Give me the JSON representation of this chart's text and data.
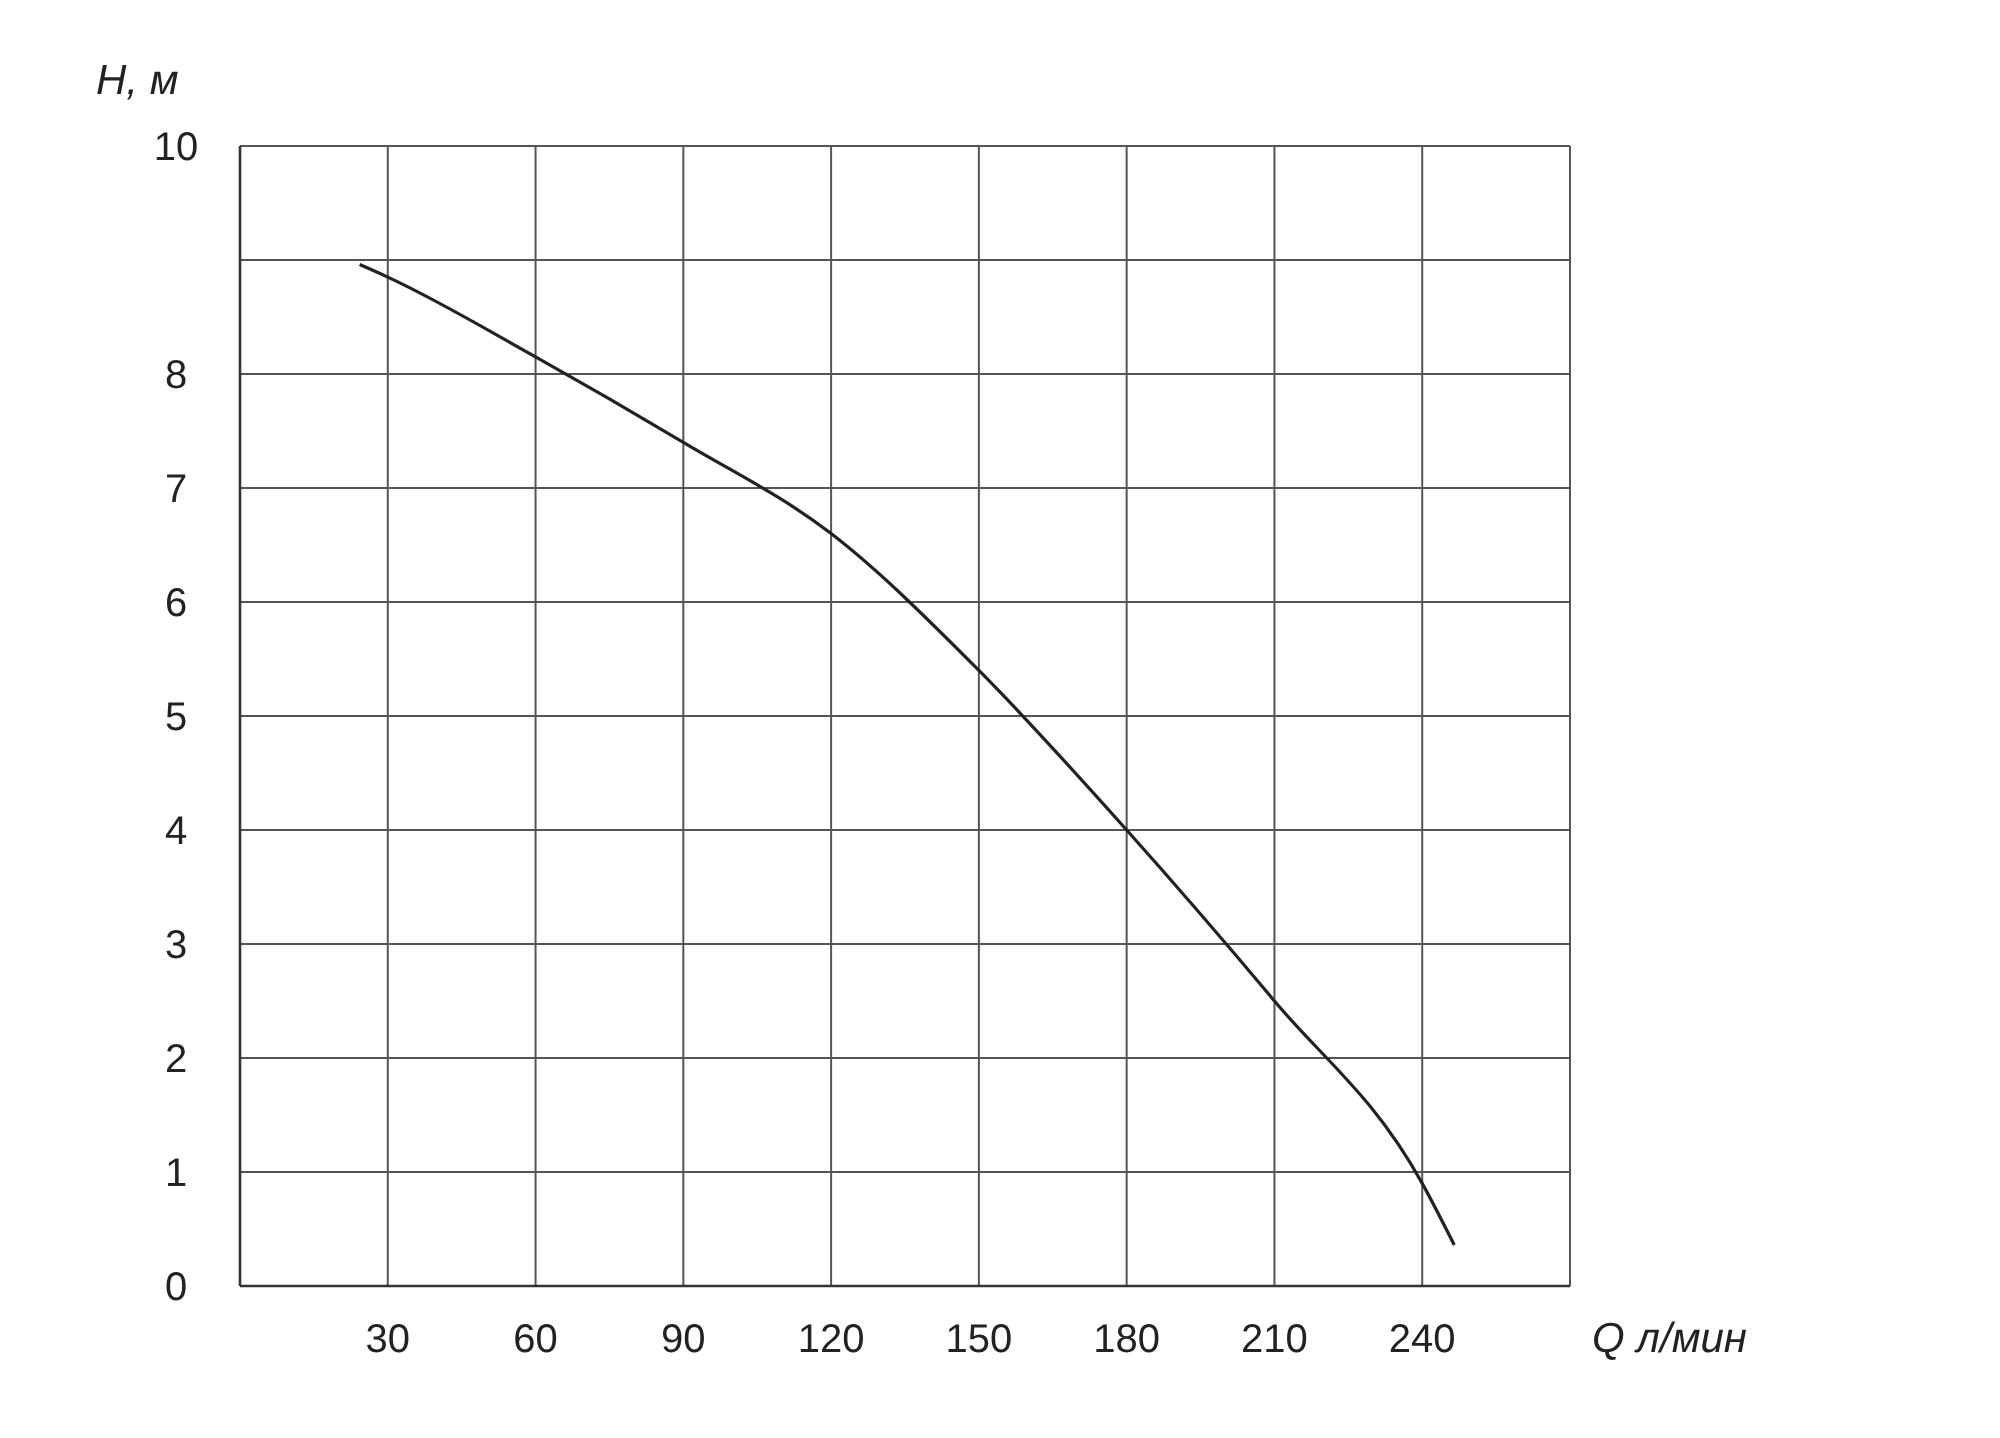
{
  "chart_data": {
    "type": "line",
    "xlabel": "Q л/мин",
    "ylabel": "H, м",
    "x": [
      24.3,
      30,
      60,
      90,
      120,
      150,
      180,
      210,
      240,
      246.5
    ],
    "series": [
      {
        "color": "#222222",
        "values": [
          8.96,
          8.85,
          8.15,
          7.4,
          6.6,
          5.4,
          4.0,
          2.5,
          0.9,
          0.36
        ]
      }
    ],
    "xlim": [
      0,
      270
    ],
    "xticks": [
      30,
      60,
      90,
      120,
      150,
      180,
      210,
      240,
      {
        "value": 270,
        "label": null
      }
    ],
    "ylim": [
      0,
      10
    ],
    "yticks": [
      0,
      1,
      2,
      3,
      4,
      5,
      6,
      7,
      8,
      {
        "value": 9,
        "label": null
      },
      10
    ],
    "grid": true,
    "line_style": "solid"
  }
}
